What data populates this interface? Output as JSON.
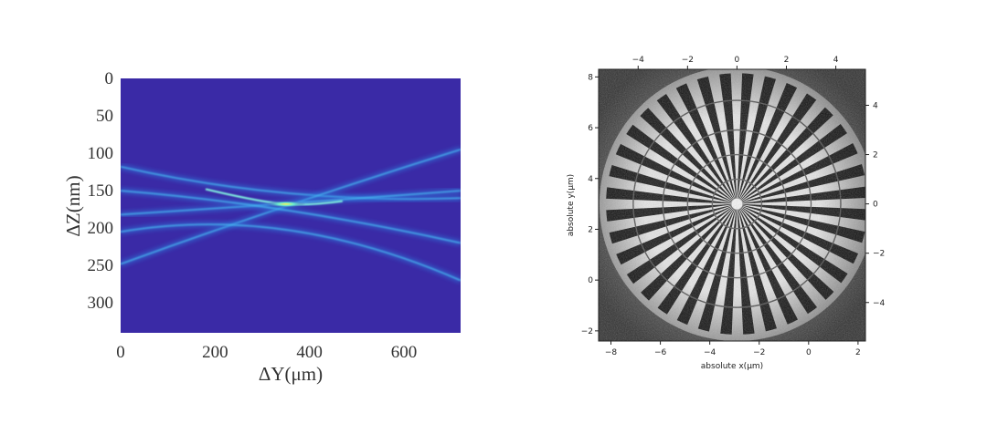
{
  "chart_data": [
    {
      "type": "heatmap",
      "xlabel": "ΔY(μm)",
      "ylabel": "ΔZ(nm)",
      "xlim": [
        0,
        720
      ],
      "ylim": [
        340,
        0
      ],
      "x_ticks": [
        "0",
        "200",
        "400",
        "600"
      ],
      "x_tick_values": [
        0,
        200,
        400,
        600
      ],
      "y_ticks": [
        "0",
        "50",
        "100",
        "150",
        "200",
        "250",
        "300"
      ],
      "y_tick_values": [
        0,
        50,
        100,
        150,
        200,
        250,
        300
      ],
      "colormap": "jet",
      "background_color": "#3a2aa6",
      "beams": [
        {
          "x": [
            0,
            350,
            720
          ],
          "y": [
            118,
            168,
            160
          ]
        },
        {
          "x": [
            0,
            350,
            720
          ],
          "y": [
            248,
            168,
            95
          ]
        },
        {
          "x": [
            0,
            350,
            720
          ],
          "y": [
            182,
            168,
            150
          ]
        },
        {
          "x": [
            0,
            350,
            720
          ],
          "y": [
            150,
            168,
            220
          ]
        },
        {
          "x": [
            0,
            350,
            720
          ],
          "y": [
            205,
            168,
            270
          ]
        }
      ],
      "focus": {
        "x": 350,
        "y": 168
      }
    },
    {
      "type": "heatmap",
      "xlabel": "absolute x(μm)",
      "ylabel": "absolute y(μm)",
      "xlim": [
        -8.5,
        2.3
      ],
      "ylim": [
        -2.4,
        8.3
      ],
      "x_ticks": [
        "−8",
        "−6",
        "−4",
        "−2",
        "0",
        "2"
      ],
      "x_tick_values": [
        -8,
        -6,
        -4,
        -2,
        0,
        2
      ],
      "y_ticks": [
        "−2",
        "0",
        "2",
        "4",
        "6",
        "8"
      ],
      "y_tick_values": [
        -2,
        0,
        2,
        4,
        6,
        8
      ],
      "top_ticks": [
        "−4",
        "−2",
        "0",
        "2",
        "4"
      ],
      "top_tick_values": [
        -4,
        -2,
        0,
        2,
        4
      ],
      "right_ticks": [
        "4",
        "2",
        "0",
        "−2",
        "−4"
      ],
      "right_tick_values": [
        4,
        2,
        0,
        -2,
        -4
      ],
      "colormap": "gray",
      "siemens_star": {
        "center": [
          -2.9,
          3.0
        ],
        "spokes": 36,
        "radius": 5.3,
        "rings": [
          1.0,
          2.0,
          3.0,
          4.2
        ]
      }
    }
  ]
}
